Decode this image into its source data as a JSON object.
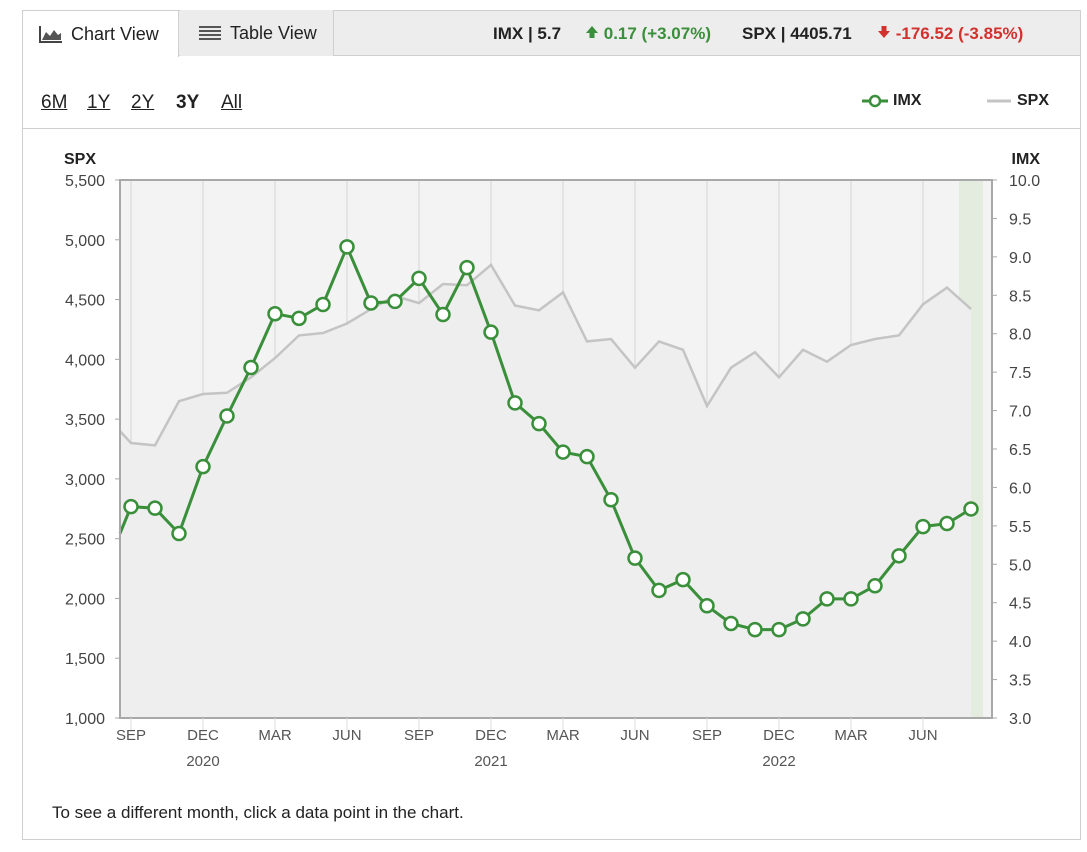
{
  "tabs": [
    {
      "label": "Chart View",
      "icon": "area-chart-icon",
      "active": true
    },
    {
      "label": "Table View",
      "icon": "table-icon",
      "active": false
    }
  ],
  "quotes": {
    "imx": {
      "label": "IMX | 5.7",
      "change": "0.17 (+3.07%)",
      "direction": "up",
      "color": "#3a8f3a"
    },
    "spx": {
      "label": "SPX | 4405.71",
      "change": "-176.52 (-3.85%)",
      "direction": "down",
      "color": "#d2322d"
    }
  },
  "ranges": [
    "6M",
    "1Y",
    "2Y",
    "3Y",
    "All"
  ],
  "active_range": "3Y",
  "legend": [
    {
      "name": "IMX",
      "color": "#3a8f3a",
      "style": "line-with-circle"
    },
    {
      "name": "SPX",
      "color": "#c4c4c4",
      "style": "line"
    }
  ],
  "footer_note": "To see a different month, click a data point in the chart.",
  "chart_data": {
    "type": "line",
    "left_axis": {
      "title": "SPX",
      "min": 1000,
      "max": 5500,
      "ticks": [
        "1,000",
        "1,500",
        "2,000",
        "2,500",
        "3,000",
        "3,500",
        "4,000",
        "4,500",
        "5,000",
        "5,500"
      ]
    },
    "right_axis": {
      "title": "IMX",
      "min": 3.0,
      "max": 10.0,
      "ticks": [
        "3.0",
        "3.5",
        "4.0",
        "4.5",
        "5.0",
        "5.5",
        "6.0",
        "6.5",
        "7.0",
        "7.5",
        "8.0",
        "8.5",
        "9.0",
        "9.5",
        "10.0"
      ]
    },
    "x_months": [
      "2019-08",
      "2019-09",
      "2019-10",
      "2019-11",
      "2019-12",
      "2020-01",
      "2020-02",
      "2020-03",
      "2020-04",
      "2020-05",
      "2020-06",
      "2020-07",
      "2020-08",
      "2020-09",
      "2020-10",
      "2020-11",
      "2020-12",
      "2021-01",
      "2021-02",
      "2021-03",
      "2021-04",
      "2021-05",
      "2021-06",
      "2021-07",
      "2021-08",
      "2021-09",
      "2021-10",
      "2021-11",
      "2021-12",
      "2022-01",
      "2022-02",
      "2022-03",
      "2022-04",
      "2022-05",
      "2022-06",
      "2022-07",
      "2022-08"
    ],
    "x_tick_labels": [
      {
        "month": "2019-09",
        "label": "SEP"
      },
      {
        "month": "2019-12",
        "label": "DEC"
      },
      {
        "month": "2020-03",
        "label": "MAR"
      },
      {
        "month": "2020-06",
        "label": "JUN"
      },
      {
        "month": "2020-09",
        "label": "SEP"
      },
      {
        "month": "2020-12",
        "label": "DEC"
      },
      {
        "month": "2021-03",
        "label": "MAR"
      },
      {
        "month": "2021-06",
        "label": "JUN"
      },
      {
        "month": "2021-09",
        "label": "SEP"
      },
      {
        "month": "2021-12",
        "label": "DEC"
      },
      {
        "month": "2022-03",
        "label": "MAR"
      },
      {
        "month": "2022-06",
        "label": "JUN"
      }
    ],
    "year_labels": [
      {
        "month": "2019-12",
        "label": "2020"
      },
      {
        "month": "2020-12",
        "label": "2021"
      },
      {
        "month": "2021-12",
        "label": "2022"
      }
    ],
    "series": [
      {
        "name": "SPX",
        "axis": "left",
        "color": "#c4c4c4",
        "start_value": 3400,
        "values": [
          3300,
          3280,
          3650,
          3710,
          3720,
          3850,
          4010,
          4200,
          4220,
          4300,
          4420,
          4530,
          4470,
          4630,
          4620,
          4790,
          4450,
          4410,
          4560,
          4150,
          4170,
          3930,
          4150,
          4080,
          3610,
          3930,
          4060,
          3850,
          4080,
          3980,
          4120,
          4170,
          4200,
          4460,
          4600,
          4420
        ]
      },
      {
        "name": "IMX",
        "axis": "right",
        "color": "#3a8f3a",
        "start_value": 5.4,
        "values": [
          5.75,
          5.73,
          5.4,
          6.27,
          6.93,
          7.56,
          8.26,
          8.2,
          8.38,
          9.13,
          8.4,
          8.42,
          8.72,
          8.25,
          8.86,
          8.02,
          7.1,
          6.83,
          6.46,
          6.4,
          5.84,
          5.08,
          4.66,
          4.8,
          4.46,
          4.23,
          4.15,
          4.15,
          4.29,
          4.55,
          4.55,
          4.72,
          5.11,
          5.49,
          5.53,
          5.72
        ]
      }
    ],
    "highlighted_month": "2022-08",
    "grid": "vertical"
  }
}
